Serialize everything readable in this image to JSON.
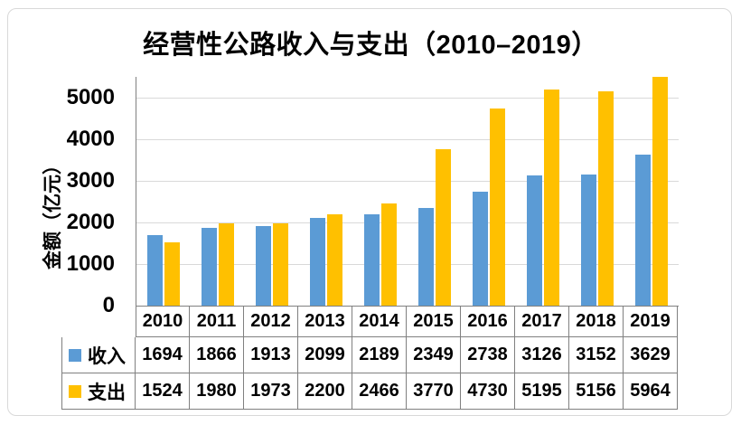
{
  "chart_data": {
    "type": "bar",
    "title": "经营性公路收入与支出（2010–2019）",
    "ylabel": "金额（亿元）",
    "xlabel": "",
    "categories": [
      "2010",
      "2011",
      "2012",
      "2013",
      "2014",
      "2015",
      "2016",
      "2017",
      "2018",
      "2019"
    ],
    "series": [
      {
        "name": "收入",
        "color": "#5B9BD5",
        "values": [
          1694,
          1866,
          1913,
          2099,
          2189,
          2349,
          2738,
          3126,
          3152,
          3629
        ]
      },
      {
        "name": "支出",
        "color": "#FFC000",
        "values": [
          1524,
          1980,
          1973,
          2200,
          2466,
          3770,
          4730,
          5195,
          5156,
          5964
        ]
      }
    ],
    "y_ticks": [
      0,
      1000,
      2000,
      3000,
      4000,
      5000
    ],
    "ylim": [
      0,
      5500
    ],
    "grid": true,
    "gridline_color": "#d9d9d9",
    "axis_color": "#808080",
    "legend_position": "data-table-left"
  }
}
